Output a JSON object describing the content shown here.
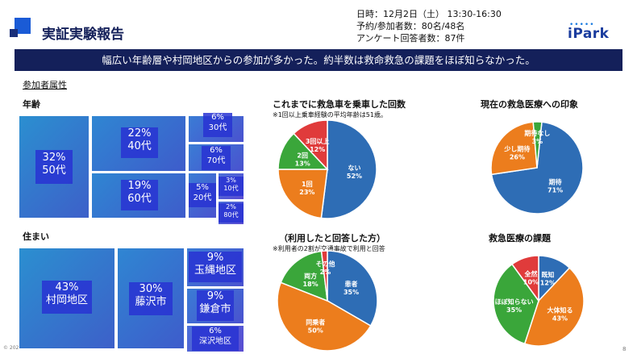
{
  "header": {
    "title": "実証実験報告",
    "date_line": "日時：12月2日（土） 13:30-16:30",
    "reservation_line": "予約/参加者数：80名/48名",
    "survey_line": "アンケート回答者数：87件",
    "logo_text": "iPark"
  },
  "banner": "幅広い年齢層や村岡地区からの参加が多かった。約半数は救命救急の課題をほぼ知らなかった。",
  "section_label": "参加者属性",
  "age": {
    "label": "年齢",
    "tiles": [
      {
        "pct": "32%",
        "name": "50代"
      },
      {
        "pct": "22%",
        "name": "40代"
      },
      {
        "pct": "19%",
        "name": "60代"
      },
      {
        "pct": "6%",
        "name": "30代"
      },
      {
        "pct": "6%",
        "name": "70代"
      },
      {
        "pct": "5%",
        "name": "20代"
      },
      {
        "pct": "3%",
        "name": "10代"
      },
      {
        "pct": "2%",
        "name": "80代"
      }
    ]
  },
  "residence": {
    "label": "住まい",
    "tiles": [
      {
        "pct": "43%",
        "name": "村岡地区"
      },
      {
        "pct": "30%",
        "name": "藤沢市"
      },
      {
        "pct": "9%",
        "name": "玉縄地区"
      },
      {
        "pct": "9%",
        "name": "鎌倉市"
      },
      {
        "pct": "6%",
        "name": "深沢地区"
      }
    ]
  },
  "footer": {
    "copyright": "© 202",
    "page": "8"
  },
  "chart_data": [
    {
      "type": "pie",
      "title": "これまでに救急車を乗車した回数",
      "note": "※1回以上乗車経験の平均年齢は51歳。",
      "slices": [
        {
          "label": "ない",
          "value": 52,
          "color": "#2e6db5"
        },
        {
          "label": "1回",
          "value": 23,
          "color": "#ec7d1d"
        },
        {
          "label": "2回",
          "value": 13,
          "color": "#3aa63a"
        },
        {
          "label": "3回以上",
          "value": 12,
          "color": "#e03b3b"
        }
      ]
    },
    {
      "type": "pie",
      "title": "現在の救急医療への印象",
      "note": "",
      "slices": [
        {
          "label": "期待",
          "value": 71,
          "color": "#2e6db5"
        },
        {
          "label": "少し期待",
          "value": 26,
          "color": "#ec7d1d"
        },
        {
          "label": "期待なし",
          "value": 3,
          "color": "#3aa63a"
        }
      ]
    },
    {
      "type": "pie",
      "title": "（利用したと回答した方）",
      "note": "※利用者の2割が交通事故で利用と回答",
      "slices": [
        {
          "label": "患者",
          "value": 35,
          "color": "#2e6db5"
        },
        {
          "label": "同乗者",
          "value": 50,
          "color": "#ec7d1d"
        },
        {
          "label": "両方",
          "value": 18,
          "color": "#3aa63a"
        },
        {
          "label": "その他",
          "value": 2,
          "color": "#e03b3b"
        }
      ]
    },
    {
      "type": "pie",
      "title": "救急医療の課題",
      "note": "",
      "slices": [
        {
          "label": "既知",
          "value": 12,
          "color": "#2e6db5"
        },
        {
          "label": "大体知る",
          "value": 43,
          "color": "#ec7d1d"
        },
        {
          "label": "ほぼ知らない",
          "value": 35,
          "color": "#3aa63a"
        },
        {
          "label": "全然",
          "value": 10,
          "color": "#e03b3b"
        }
      ]
    }
  ]
}
